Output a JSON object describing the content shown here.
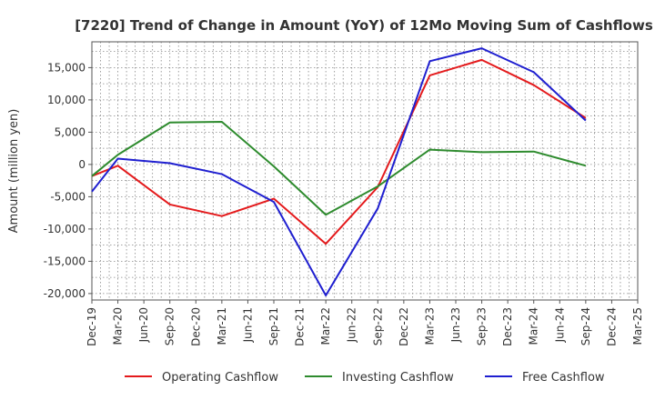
{
  "chart_data": {
    "type": "line",
    "title": "[7220]  Trend of Change in Amount (YoY) of 12Mo Moving Sum of Cashflows",
    "xlabel": "",
    "ylabel": "Amount (million yen)",
    "ylim": [
      -21000,
      19000
    ],
    "yticks": [
      -20000,
      -15000,
      -10000,
      -5000,
      0,
      5000,
      10000,
      15000
    ],
    "ytick_labels": [
      "-20,000",
      "-15,000",
      "-10,000",
      "-5,000",
      "0",
      "5,000",
      "10,000",
      "15,000"
    ],
    "grid": true,
    "categories": [
      "Dec-19",
      "Mar-20",
      "Jun-20",
      "Sep-20",
      "Dec-20",
      "Mar-21",
      "Jun-21",
      "Sep-21",
      "Dec-21",
      "Mar-22",
      "Jun-22",
      "Sep-22",
      "Dec-22",
      "Mar-23",
      "Jun-23",
      "Sep-23",
      "Dec-23",
      "Mar-24",
      "Jun-24",
      "Sep-24",
      "Dec-24",
      "Mar-25"
    ],
    "series": [
      {
        "name": "Operating Cashflow",
        "color": "#e41a1c",
        "values": [
          -1800,
          -200,
          null,
          -6200,
          null,
          -8000,
          null,
          -5300,
          null,
          -12300,
          null,
          -3500,
          null,
          13800,
          null,
          16200,
          null,
          12300,
          null,
          7200,
          null,
          null
        ]
      },
      {
        "name": "Investing Cashflow",
        "color": "#2e8b2e",
        "values": [
          -1800,
          1500,
          null,
          6500,
          null,
          6600,
          null,
          -300,
          null,
          -7800,
          null,
          -3400,
          null,
          2300,
          null,
          1900,
          null,
          2000,
          null,
          -200,
          null,
          null
        ]
      },
      {
        "name": "Free Cashflow",
        "color": "#1f1fd0",
        "values": [
          -4200,
          900,
          null,
          200,
          null,
          -1500,
          null,
          -5800,
          null,
          -20300,
          null,
          -6800,
          null,
          16000,
          null,
          18000,
          null,
          14300,
          null,
          6800,
          null,
          null
        ]
      }
    ],
    "legend_position": "bottom"
  }
}
